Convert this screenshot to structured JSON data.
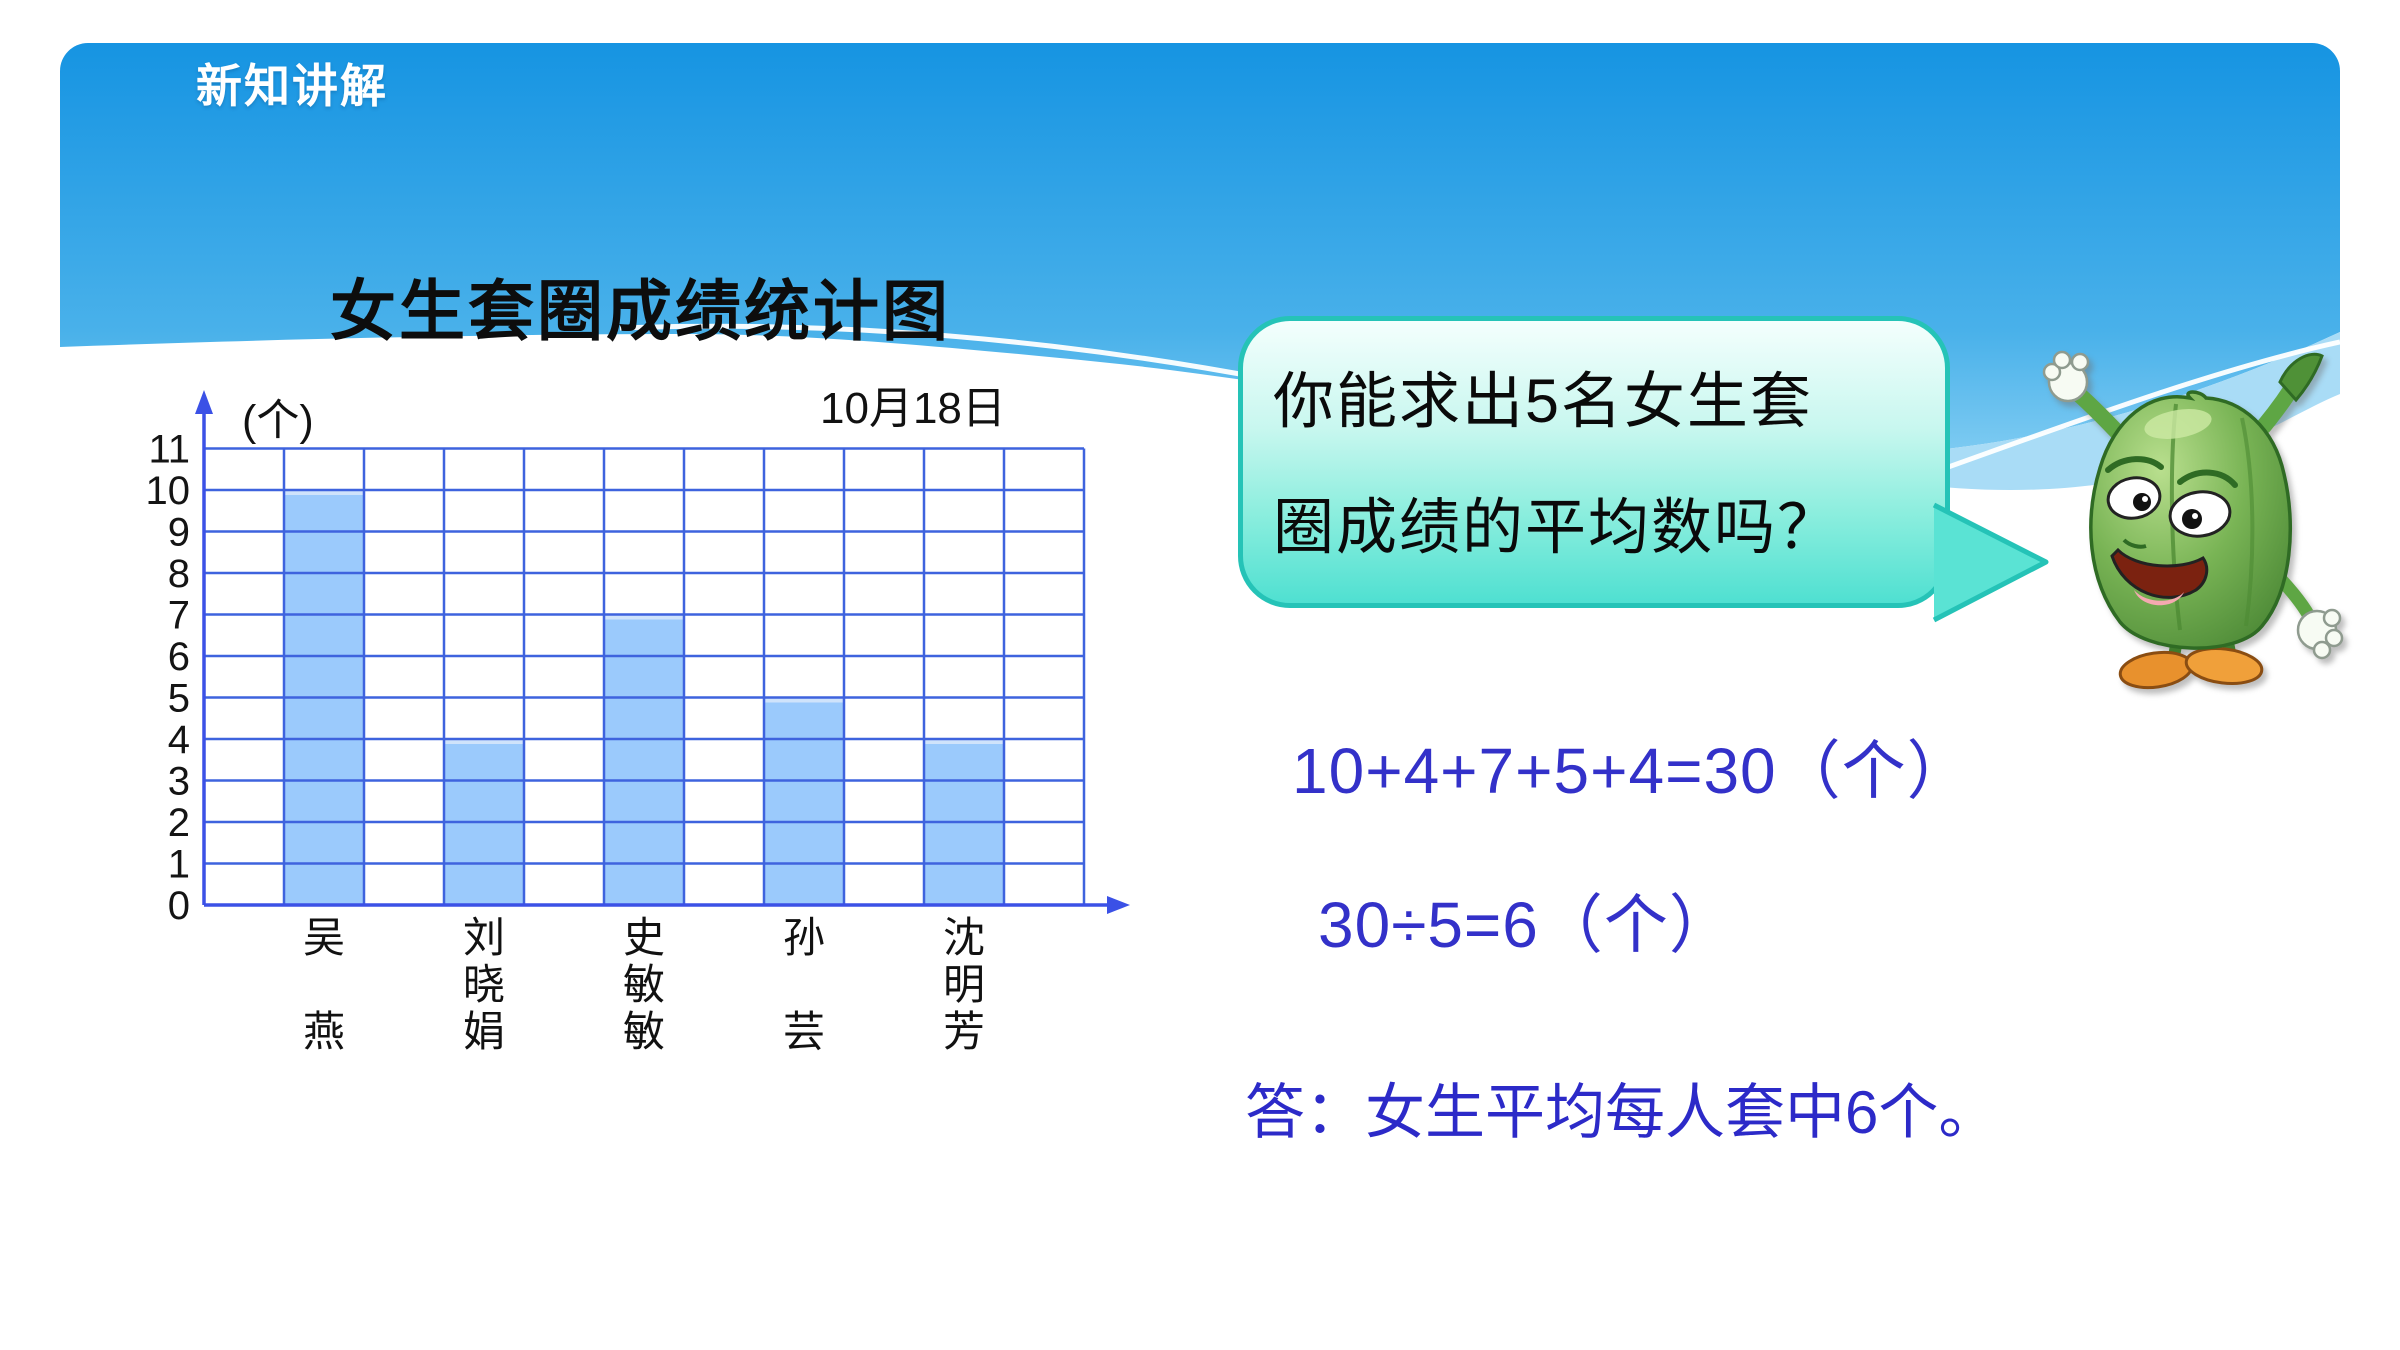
{
  "slide": {
    "header_badge": "新知讲解",
    "chart_title": "女生套圈成绩统计图",
    "chart_date": "10月18日",
    "y_axis_unit": "(个)",
    "speech_bubble": {
      "line1": "你能求出5名女生套",
      "line2": "圈成绩的平均数吗？"
    },
    "solution": {
      "equation1": "10+4+7+5+4=30（个）",
      "equation2": "30÷5=6（个）",
      "answer": "答：女生平均每人套中6个。"
    },
    "mascot": "green-pepper-cartoon-character"
  },
  "chart_data": {
    "type": "bar",
    "title": "女生套圈成绩统计图",
    "annotation_date": "10月18日",
    "ylabel": "(个)",
    "xlabel": "",
    "categories": [
      "吴燕",
      "刘晓娟",
      "史敏敏",
      "孙芸",
      "沈明芳"
    ],
    "values": [
      10,
      4,
      7,
      5,
      4
    ],
    "ylim": [
      0,
      11
    ],
    "ytick_step": 1,
    "grid": true,
    "legend": "none",
    "bar_color": "#9bcafc",
    "bar_top_highlight": "#cfe3fb",
    "grid_color": "#3e63de",
    "axis_color": "#3b51e6",
    "tick_label_color": "#141414"
  },
  "colors": {
    "sky_top": "#1694e2",
    "sky_bottom": "#7ecbf2",
    "wave_band": "#a9dcf6",
    "bubble_border": "#25c3b7",
    "bubble_top": "#f4fffd",
    "bubble_bottom": "#4fe0d1",
    "math_text": "#3331c9",
    "answer_text": "#2c2ac8",
    "title_text": "#0d0d0d"
  }
}
